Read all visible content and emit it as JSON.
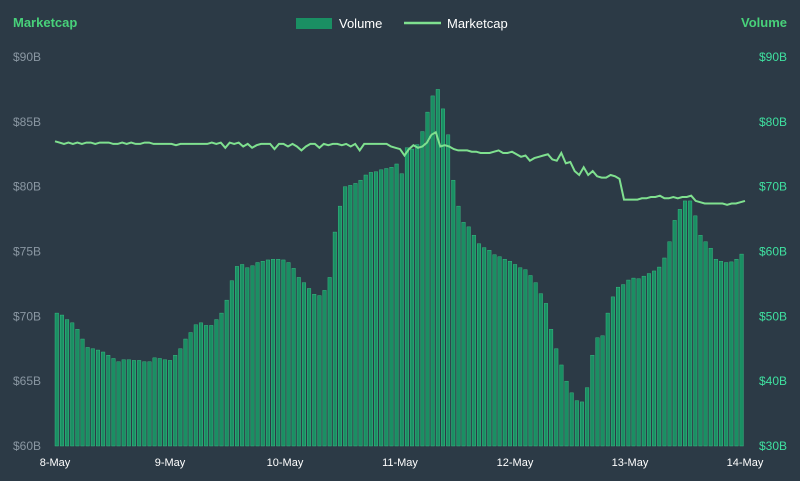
{
  "chart_data": {
    "type": "bar+line",
    "title": "",
    "left_axis_title": "Marketcap",
    "right_axis_title": "Volume",
    "left_ticks": [
      "$60B",
      "$65B",
      "$70B",
      "$75B",
      "$80B",
      "$85B",
      "$90B"
    ],
    "right_ticks": [
      "$30B",
      "$40B",
      "$50B",
      "$60B",
      "$70B",
      "$80B",
      "$90B"
    ],
    "left_ylim": [
      60,
      90
    ],
    "right_ylim": [
      30,
      90
    ],
    "x_labels": [
      "8-May",
      "9-May",
      "10-May",
      "11-May",
      "12-May",
      "13-May",
      "14-May"
    ],
    "legend": [
      {
        "name": "Volume",
        "kind": "bar"
      },
      {
        "name": "Marketcap",
        "kind": "line"
      }
    ],
    "colors": {
      "background": "#2c3a46",
      "bar": "#1a8f63",
      "bar_edge": "#3ec98a",
      "line": "#7fe08f",
      "left_title": "#48d17a",
      "right_ticks": "#3fe0a0"
    },
    "series": [
      {
        "name": "Volume",
        "unit": "$B",
        "values": [
          50.5,
          50.2,
          49.5,
          49,
          48,
          46.5,
          45.2,
          45,
          44.8,
          44.5,
          44,
          43.5,
          43,
          43.3,
          43.3,
          43.2,
          43.2,
          43,
          43,
          43.6,
          43.5,
          43.3,
          43.2,
          44,
          45,
          46.5,
          47.5,
          48.7,
          49,
          48.6,
          48.6,
          49.5,
          50.5,
          52.5,
          55.5,
          57.7,
          58,
          57.5,
          57.8,
          58.3,
          58.5,
          58.7,
          58.8,
          58.8,
          58.7,
          58.3,
          57.4,
          56,
          55.2,
          54.3,
          53.4,
          53.2,
          54,
          56,
          63,
          67,
          70,
          70.2,
          70.5,
          71,
          71.8,
          72.2,
          72.3,
          72.6,
          72.8,
          73,
          73.5,
          72,
          76,
          75.8,
          76.5,
          78.5,
          81.5,
          84,
          85,
          82,
          78,
          71,
          67,
          64.5,
          63.8,
          62.5,
          61.2,
          60.6,
          60.2,
          59.5,
          59.2,
          58.8,
          58.5,
          58,
          57.5,
          57.2,
          56.3,
          55.2,
          53.5,
          52,
          48,
          45,
          42.5,
          40,
          38.2,
          37,
          36.8,
          39,
          44,
          46.7,
          47,
          50.5,
          53,
          54.5,
          54.9,
          55.6,
          55.9,
          55.8,
          56.2,
          56.6,
          57,
          57.6,
          59,
          61.5,
          64.8,
          66.5,
          67.8,
          67.8,
          65.5,
          62.5,
          61.5,
          60.5,
          58.8,
          58.5,
          58.3,
          58.4,
          58.8,
          59.6
        ]
      },
      {
        "name": "Marketcap",
        "unit": "$B",
        "values": [
          83.5,
          83.4,
          83.3,
          83.4,
          83.3,
          83.4,
          83.3,
          83.4,
          83.4,
          83.3,
          83.4,
          83.4,
          83.4,
          83.3,
          83.3,
          83.4,
          83.3,
          83.4,
          83.3,
          83.3,
          83.4,
          83.4,
          83.3,
          83.3,
          83.3,
          83.3,
          83.3,
          83.2,
          83.3,
          83.3,
          83.3,
          83.3,
          83.3,
          83.3,
          83.3,
          83.4,
          83.3,
          83.4,
          83,
          83.4,
          83.3,
          83.4,
          83.1,
          83.3,
          83,
          83.2,
          83.3,
          83.3,
          83.3,
          82.9,
          83.3,
          83.3,
          83.1,
          83.3,
          83.1,
          82.8,
          83.1,
          83.3,
          83.3,
          83,
          83.3,
          83.2,
          83.3,
          83.3,
          83.2,
          83.3,
          83.1,
          83.3,
          82.8,
          83.3,
          83.3,
          83.3,
          83.3,
          83.3,
          83.3,
          83.1,
          83,
          82.9,
          82.4,
          82.9,
          83.2,
          83,
          83.1,
          83.4,
          84,
          84.2,
          83.1,
          83.2,
          83.1,
          82.9,
          82.8,
          82.8,
          82.8,
          82.7,
          82.7,
          82.6,
          82.6,
          82.6,
          82.7,
          82.8,
          82.6,
          82.6,
          82.7,
          82.5,
          82.3,
          82.4,
          82,
          82.2,
          82.3,
          82.4,
          82.5,
          82.1,
          82,
          82.6,
          81.8,
          81.9,
          81.2,
          80.9,
          81.5,
          80.9,
          81.2,
          80.8,
          80.7,
          80.7,
          80.9,
          80.8,
          80.6,
          79,
          79,
          79,
          79,
          79.1,
          79.1,
          79.2,
          79.2,
          79.3,
          79.1,
          79.1,
          79.2,
          79.1,
          79.2,
          79.2,
          79.3,
          78.9,
          78.8,
          78.7,
          78.7,
          78.7,
          78.7,
          78.7,
          78.6,
          78.7,
          78.7,
          78.8,
          78.9
        ]
      }
    ]
  }
}
